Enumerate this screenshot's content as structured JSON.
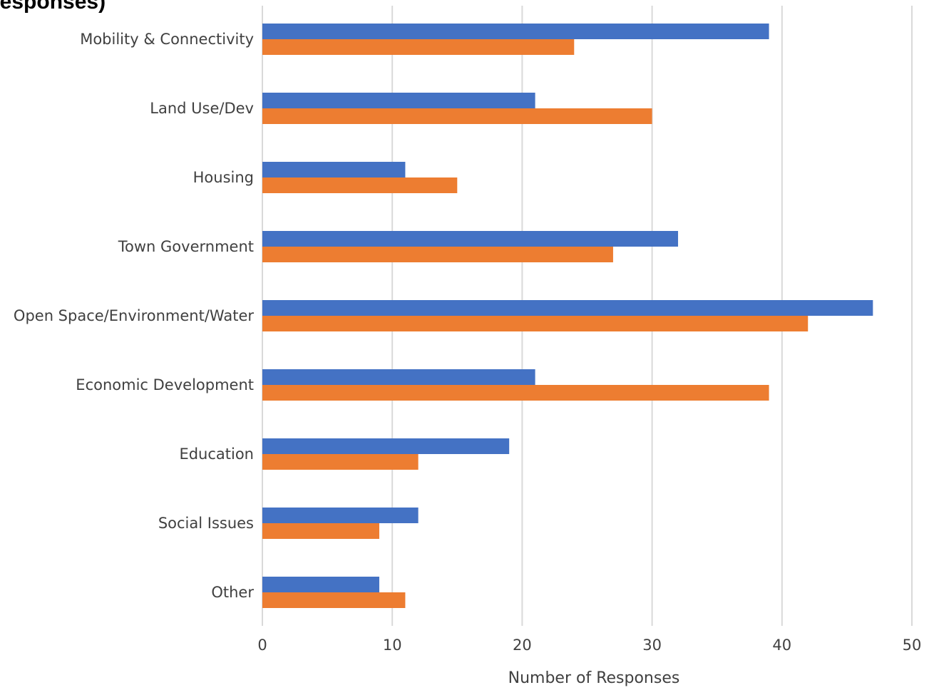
{
  "chart_data": {
    "type": "bar",
    "orientation": "horizontal",
    "title": "responses)",
    "xlabel": "Number of Responses",
    "ylabel": "",
    "xlim": [
      0,
      50
    ],
    "xticks": [
      0,
      10,
      20,
      30,
      40,
      50
    ],
    "grid": "vertical",
    "legend": "none",
    "categories": [
      "Mobility & Connectivity",
      "Land Use/Dev",
      "Housing",
      "Town Government",
      "Open Space/Environment/Water",
      "Economic Development",
      "Education",
      "Social Issues",
      "Other"
    ],
    "series": [
      {
        "color": "#4472C4",
        "values": [
          39,
          21,
          11,
          32,
          47,
          21,
          19,
          12,
          9
        ]
      },
      {
        "color": "#ED7D31",
        "values": [
          24,
          30,
          15,
          27,
          42,
          39,
          12,
          9,
          11
        ]
      }
    ]
  }
}
